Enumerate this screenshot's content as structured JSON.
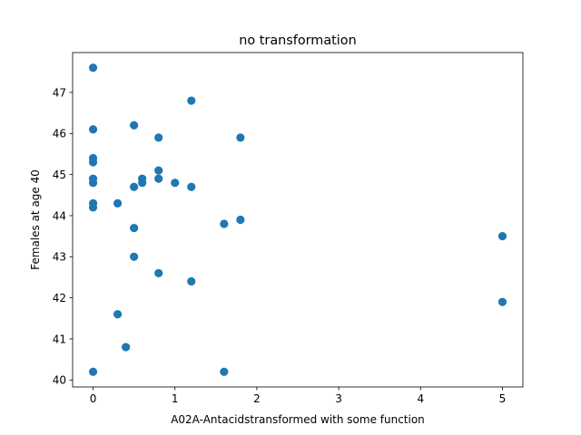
{
  "chart_data": {
    "type": "scatter",
    "title": "no transformation",
    "xlabel": "A02A-Antacidstransformed with some function",
    "ylabel": "Females at age 40",
    "xlim": [
      -0.25,
      5.25
    ],
    "ylim": [
      39.83,
      47.97
    ],
    "xticks": [
      0,
      1,
      2,
      3,
      4,
      5
    ],
    "yticks": [
      40,
      41,
      42,
      43,
      44,
      45,
      46,
      47
    ],
    "grid": false,
    "marker_color": "#1f77b4",
    "points": [
      {
        "x": 0,
        "y": 47.6
      },
      {
        "x": 0,
        "y": 46.1
      },
      {
        "x": 0,
        "y": 45.4
      },
      {
        "x": 0,
        "y": 45.3
      },
      {
        "x": 0,
        "y": 44.9
      },
      {
        "x": 0,
        "y": 44.8
      },
      {
        "x": 0,
        "y": 44.3
      },
      {
        "x": 0,
        "y": 44.2
      },
      {
        "x": 0,
        "y": 40.2
      },
      {
        "x": 0.3,
        "y": 44.3
      },
      {
        "x": 0.3,
        "y": 41.6
      },
      {
        "x": 0.4,
        "y": 40.8
      },
      {
        "x": 0.5,
        "y": 46.2
      },
      {
        "x": 0.5,
        "y": 44.7
      },
      {
        "x": 0.5,
        "y": 43.7
      },
      {
        "x": 0.5,
        "y": 43.0
      },
      {
        "x": 0.6,
        "y": 44.9
      },
      {
        "x": 0.6,
        "y": 44.8
      },
      {
        "x": 0.8,
        "y": 45.9
      },
      {
        "x": 0.8,
        "y": 45.1
      },
      {
        "x": 0.8,
        "y": 44.9
      },
      {
        "x": 0.8,
        "y": 42.6
      },
      {
        "x": 1.0,
        "y": 44.8
      },
      {
        "x": 1.2,
        "y": 46.8
      },
      {
        "x": 1.2,
        "y": 44.7
      },
      {
        "x": 1.2,
        "y": 42.4
      },
      {
        "x": 1.6,
        "y": 43.8
      },
      {
        "x": 1.6,
        "y": 40.2
      },
      {
        "x": 1.8,
        "y": 45.9
      },
      {
        "x": 1.8,
        "y": 43.9
      },
      {
        "x": 5.0,
        "y": 43.5
      },
      {
        "x": 5.0,
        "y": 41.9
      }
    ]
  }
}
